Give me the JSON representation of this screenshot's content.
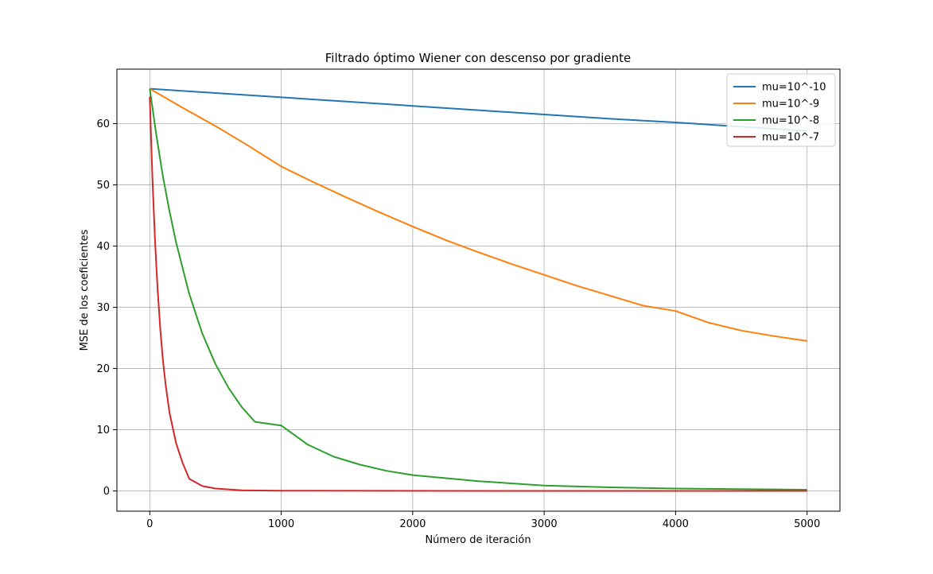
{
  "chart_data": {
    "type": "line",
    "title": "Filtrado óptimo Wiener con descenso por gradiente",
    "xlabel": "Número de iteración",
    "ylabel": "MSE de los coeficientes",
    "xlim": [
      -250,
      5250
    ],
    "ylim": [
      -3.3,
      68.9
    ],
    "xticks": [
      0,
      1000,
      2000,
      3000,
      4000,
      5000
    ],
    "xtick_labels": [
      "0",
      "1000",
      "2000",
      "3000",
      "4000",
      "5000"
    ],
    "yticks": [
      0,
      10,
      20,
      30,
      40,
      50,
      60
    ],
    "ytick_labels": [
      "0",
      "10",
      "20",
      "30",
      "40",
      "50",
      "60"
    ],
    "grid": true,
    "legend_position": "top-right",
    "series": [
      {
        "name": "mu=10^-10",
        "color": "#1f77b4",
        "x": [
          0,
          500,
          1000,
          1500,
          2000,
          2500,
          3000,
          3500,
          4000,
          4500,
          5000
        ],
        "values": [
          65.7,
          65.0,
          64.3,
          63.6,
          62.9,
          62.2,
          61.5,
          60.8,
          60.2,
          59.5,
          58.8
        ]
      },
      {
        "name": "mu=10^-9",
        "color": "#ff7f0e",
        "x": [
          0,
          250,
          500,
          750,
          1000,
          1250,
          1500,
          1750,
          2000,
          2250,
          2500,
          2750,
          3000,
          3250,
          3500,
          3750,
          4000,
          4250,
          4500,
          4750,
          5000
        ],
        "values": [
          65.7,
          62.6,
          59.6,
          56.4,
          53.0,
          50.4,
          47.9,
          45.5,
          43.2,
          41.0,
          39.0,
          37.1,
          35.3,
          33.5,
          31.9,
          30.3,
          29.4,
          27.5,
          26.2,
          25.3,
          24.5
        ]
      },
      {
        "name": "mu=10^-8",
        "color": "#2ca02c",
        "x": [
          0,
          50,
          100,
          150,
          200,
          300,
          400,
          500,
          600,
          700,
          800,
          1000,
          1200,
          1400,
          1600,
          1800,
          2000,
          2500,
          3000,
          3500,
          4000,
          4500,
          5000
        ],
        "values": [
          65.7,
          58.1,
          51.4,
          45.7,
          40.6,
          32.2,
          25.7,
          20.7,
          16.8,
          13.7,
          11.3,
          10.7,
          7.6,
          5.6,
          4.3,
          3.3,
          2.6,
          1.6,
          0.9,
          0.6,
          0.4,
          0.3,
          0.2
        ]
      },
      {
        "name": "mu=10^-7",
        "color": "#d62728",
        "x": [
          0,
          10,
          20,
          30,
          40,
          50,
          60,
          80,
          100,
          120,
          150,
          200,
          250,
          300,
          400,
          500,
          700,
          1000,
          2000,
          3000,
          4000,
          5000
        ],
        "values": [
          64.4,
          57.5,
          51.3,
          45.8,
          41.0,
          36.7,
          32.9,
          26.5,
          21.4,
          17.4,
          12.8,
          7.8,
          4.6,
          2.0,
          0.8,
          0.4,
          0.1,
          0.05,
          0.02,
          0.01,
          0.01,
          0.01
        ]
      }
    ]
  }
}
